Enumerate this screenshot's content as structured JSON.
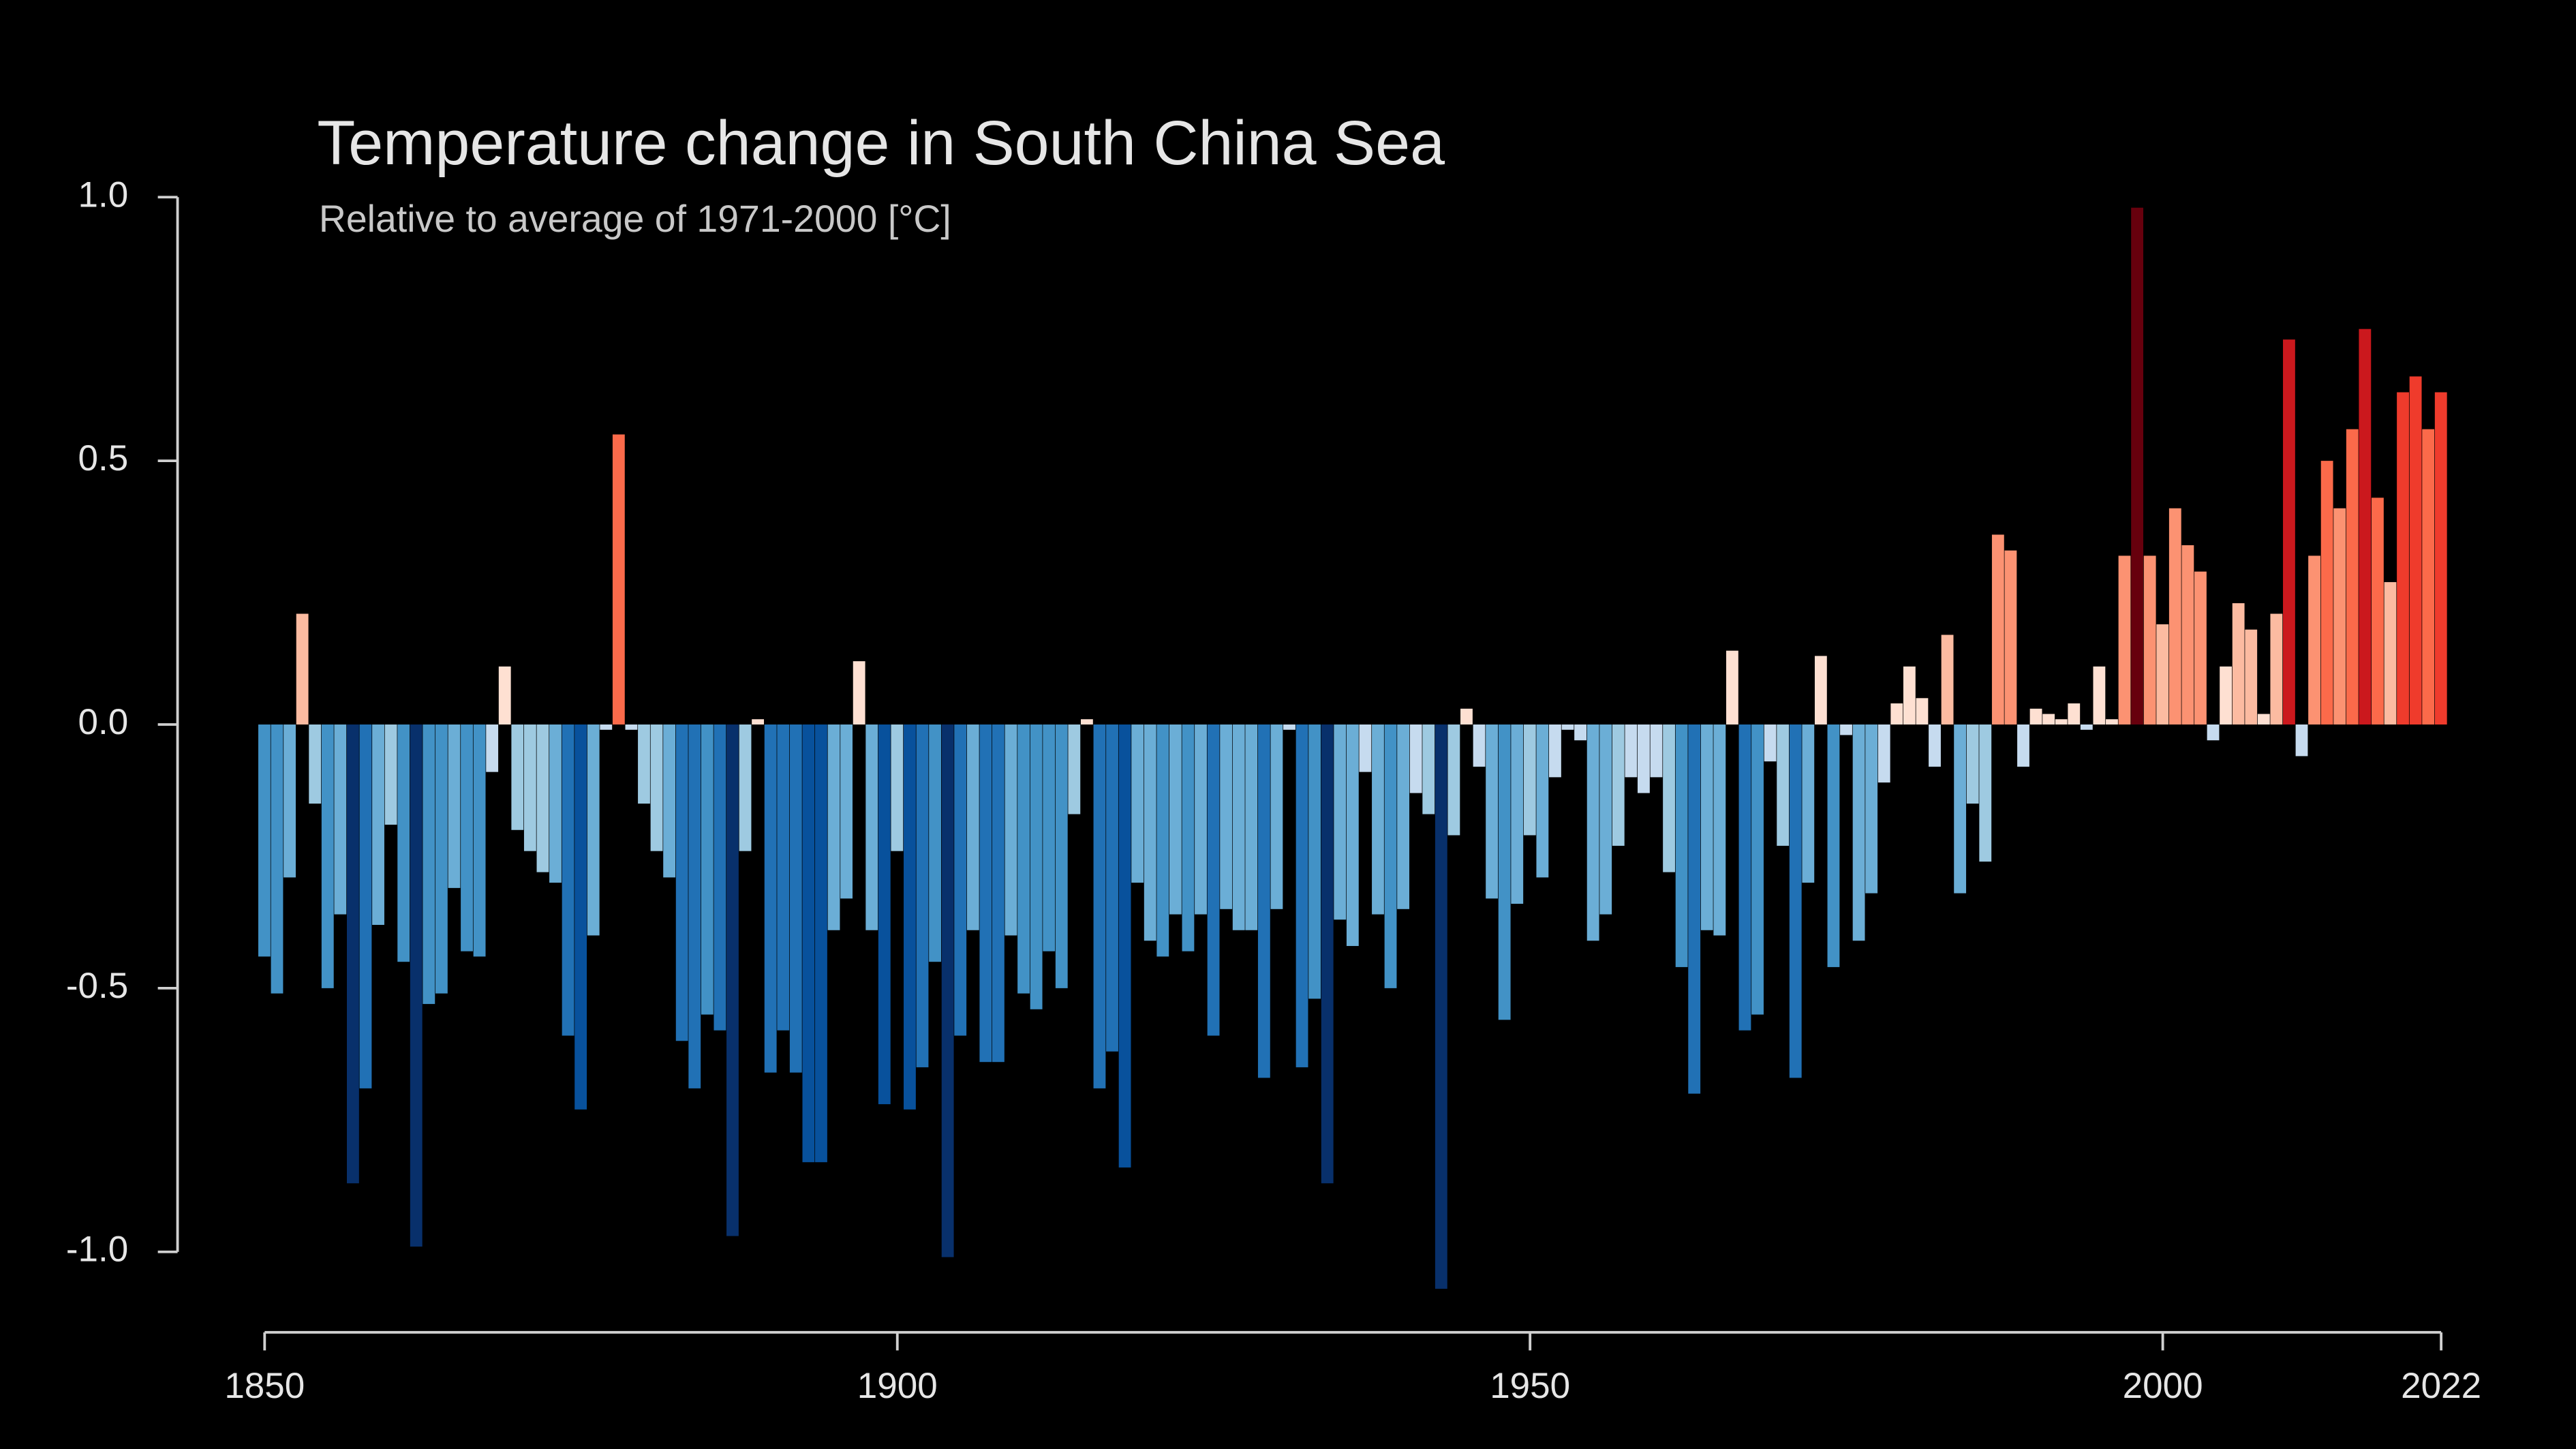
{
  "chart_data": {
    "type": "bar",
    "title": "Temperature change in South China Sea",
    "subtitle": "Relative to average of 1971-2000  [°C]",
    "x": [
      1850,
      1851,
      1852,
      1853,
      1854,
      1855,
      1856,
      1857,
      1858,
      1859,
      1860,
      1861,
      1862,
      1863,
      1864,
      1865,
      1866,
      1867,
      1868,
      1869,
      1870,
      1871,
      1872,
      1873,
      1874,
      1875,
      1876,
      1877,
      1878,
      1879,
      1880,
      1881,
      1882,
      1883,
      1884,
      1885,
      1886,
      1887,
      1888,
      1889,
      1890,
      1891,
      1892,
      1893,
      1894,
      1895,
      1896,
      1897,
      1898,
      1899,
      1900,
      1901,
      1902,
      1903,
      1904,
      1905,
      1906,
      1907,
      1908,
      1909,
      1910,
      1911,
      1912,
      1913,
      1914,
      1915,
      1916,
      1917,
      1918,
      1919,
      1920,
      1921,
      1922,
      1923,
      1924,
      1925,
      1926,
      1927,
      1928,
      1929,
      1930,
      1931,
      1932,
      1933,
      1934,
      1935,
      1936,
      1937,
      1938,
      1939,
      1940,
      1941,
      1942,
      1943,
      1944,
      1945,
      1946,
      1947,
      1948,
      1949,
      1950,
      1951,
      1952,
      1953,
      1954,
      1955,
      1956,
      1957,
      1958,
      1959,
      1960,
      1961,
      1962,
      1963,
      1964,
      1965,
      1966,
      1967,
      1968,
      1969,
      1970,
      1971,
      1972,
      1973,
      1974,
      1975,
      1976,
      1977,
      1978,
      1979,
      1980,
      1981,
      1982,
      1983,
      1984,
      1985,
      1986,
      1987,
      1988,
      1989,
      1990,
      1991,
      1992,
      1993,
      1994,
      1995,
      1996,
      1997,
      1998,
      1999,
      2000,
      2001,
      2002,
      2003,
      2004,
      2005,
      2006,
      2007,
      2008,
      2009,
      2010,
      2011,
      2012,
      2013,
      2014,
      2015,
      2016,
      2017,
      2018,
      2019,
      2020,
      2021,
      2022
    ],
    "values": [
      -0.44,
      -0.51,
      -0.29,
      0.21,
      -0.15,
      -0.5,
      -0.36,
      -0.87,
      -0.69,
      -0.38,
      -0.19,
      -0.45,
      -0.99,
      -0.53,
      -0.51,
      -0.31,
      -0.43,
      -0.44,
      -0.09,
      0.11,
      -0.2,
      -0.24,
      -0.28,
      -0.3,
      -0.59,
      -0.73,
      -0.4,
      -0.01,
      0.55,
      -0.01,
      -0.15,
      -0.24,
      -0.29,
      -0.6,
      -0.69,
      -0.55,
      -0.58,
      -0.97,
      -0.24,
      0.01,
      -0.66,
      -0.58,
      -0.66,
      -0.83,
      -0.83,
      -0.39,
      -0.33,
      0.12,
      -0.39,
      -0.72,
      -0.24,
      -0.73,
      -0.65,
      -0.45,
      -1.01,
      -0.59,
      -0.39,
      -0.64,
      -0.64,
      -0.4,
      -0.51,
      -0.54,
      -0.43,
      -0.5,
      -0.17,
      0.01,
      -0.69,
      -0.62,
      -0.84,
      -0.3,
      -0.41,
      -0.44,
      -0.36,
      -0.43,
      -0.36,
      -0.59,
      -0.35,
      -0.39,
      -0.39,
      -0.67,
      -0.35,
      -0.01,
      -0.65,
      -0.52,
      -0.87,
      -0.37,
      -0.42,
      -0.09,
      -0.36,
      -0.5,
      -0.35,
      -0.13,
      -0.17,
      -1.07,
      -0.21,
      0.03,
      -0.08,
      -0.33,
      -0.56,
      -0.34,
      -0.21,
      -0.29,
      -0.1,
      -0.01,
      -0.03,
      -0.41,
      -0.36,
      -0.23,
      -0.1,
      -0.13,
      -0.1,
      -0.28,
      -0.46,
      -0.7,
      -0.39,
      -0.4,
      0.14,
      -0.58,
      -0.55,
      -0.07,
      -0.23,
      -0.67,
      -0.3,
      0.13,
      -0.46,
      -0.02,
      -0.41,
      -0.32,
      -0.11,
      0.04,
      0.11,
      0.05,
      -0.08,
      0.17,
      -0.32,
      -0.15,
      -0.26,
      0.36,
      0.33,
      -0.08,
      0.03,
      0.02,
      0.01,
      0.04,
      -0.01,
      0.11,
      0.01,
      0.32,
      0.98,
      0.32,
      0.19,
      0.41,
      0.34,
      0.29,
      -0.03,
      0.11,
      0.23,
      0.18,
      0.02,
      0.21,
      0.73,
      -0.06,
      0.32,
      0.5,
      0.41,
      0.56,
      0.75,
      0.43,
      0.27,
      0.63,
      0.66,
      0.56,
      0.63
    ],
    "colors": [
      "#08306b",
      "#08519c",
      "#2171b5",
      "#4292c6",
      "#6baed6",
      "#9ecae1",
      "#c6dbef",
      "#fee0d2",
      "#fcbba1",
      "#fc9272",
      "#fb6a4a",
      "#ef3b2c",
      "#cb181d",
      "#67000d"
    ],
    "xlim": [
      1850,
      2022
    ],
    "xticks": [
      1850,
      1900,
      1950,
      2000,
      2022
    ],
    "ylim": [
      -1,
      1
    ],
    "yticks": [
      {
        "value": 1,
        "label": "1.0"
      },
      0.5,
      {
        "value": 0,
        "label": "0.0"
      },
      -0.5,
      {
        "value": -1,
        "label": "-1.0"
      }
    ],
    "grid": false
  }
}
